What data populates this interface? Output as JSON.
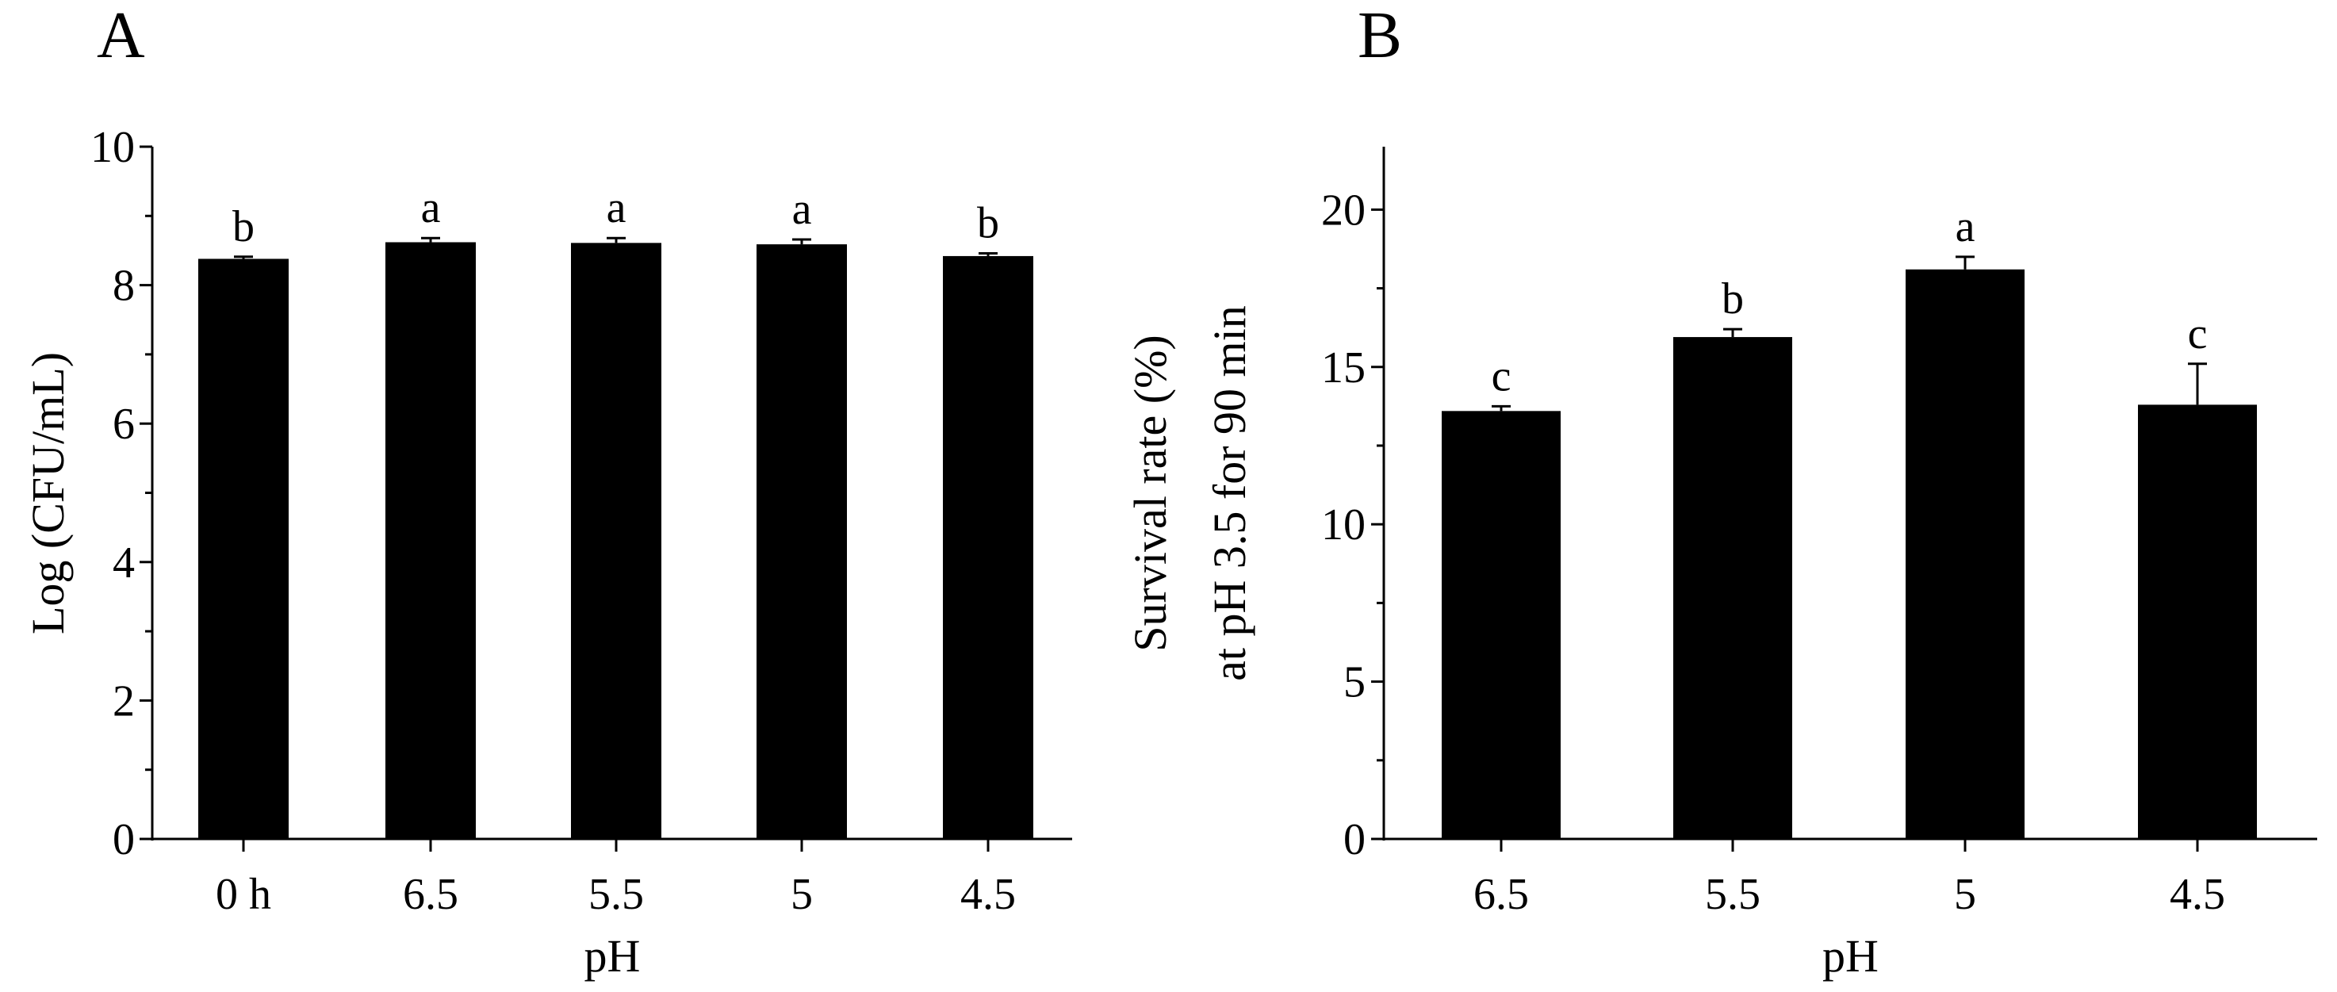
{
  "chart_data": [
    {
      "type": "bar",
      "panel_label": "A",
      "categories": [
        "0 h",
        "6.5",
        "5.5",
        "5",
        "4.5"
      ],
      "values": [
        8.38,
        8.62,
        8.61,
        8.59,
        8.42
      ],
      "errors": [
        0.03,
        0.06,
        0.07,
        0.07,
        0.04
      ],
      "significance": [
        "b",
        "a",
        "a",
        "a",
        "b"
      ],
      "xlabel": "pH",
      "ylabel": [
        "Log (CFU/mL)"
      ],
      "ylim": [
        0,
        10
      ],
      "yticks": [
        0,
        2,
        4,
        6,
        8,
        10
      ],
      "bar_color": "#000000",
      "grid": false,
      "legend": "none"
    },
    {
      "type": "bar",
      "panel_label": "B",
      "categories": [
        "6.5",
        "5.5",
        "5",
        "4.5"
      ],
      "values": [
        13.6,
        15.95,
        18.1,
        13.8
      ],
      "errors": [
        0.15,
        0.25,
        0.4,
        1.3
      ],
      "significance": [
        "c",
        "b",
        "a",
        "c"
      ],
      "xlabel": "pH",
      "ylabel": [
        "Survival rate (%)",
        "at pH 3.5 for 90 min"
      ],
      "ylim": [
        0,
        22
      ],
      "yticks": [
        0,
        5,
        10,
        15,
        20
      ],
      "bar_color": "#000000",
      "grid": false,
      "legend": "none"
    }
  ]
}
